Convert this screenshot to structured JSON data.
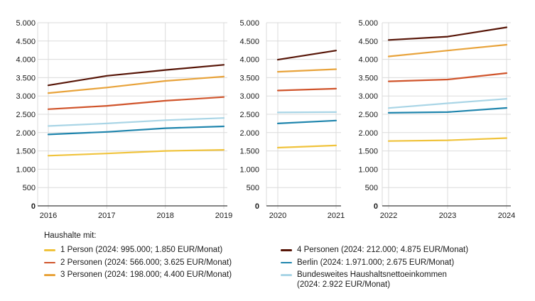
{
  "page": {
    "background": "#ffffff"
  },
  "series_colors": {
    "1-person": "#F0C33C",
    "2-personen": "#D0542B",
    "3-personen": "#E8A33B",
    "4-personen": "#571507",
    "berlin": "#1F85AD",
    "bundesweit": "#A9D5E6"
  },
  "axis": {
    "ymin": 0,
    "ymax": 5000,
    "ystep": 500,
    "tick_labels": [
      "0",
      "500",
      "1.000",
      "1.500",
      "2.000",
      "2.500",
      "3.000",
      "3.500",
      "4.000",
      "4.500",
      "5.000"
    ],
    "grid_color": "#DBDBDB",
    "axis_color": "#3C3C3C",
    "text_color": "#1A1A1A"
  },
  "chart_data": [
    {
      "type": "line",
      "x": [
        "2016",
        "2017",
        "2018",
        "2019"
      ],
      "ylim": [
        0,
        5000
      ],
      "grid": true,
      "series": [
        {
          "key": "1-person",
          "name": "1 Person",
          "values": [
            1370,
            1430,
            1500,
            1530
          ]
        },
        {
          "key": "2-personen",
          "name": "2 Personen",
          "values": [
            2640,
            2730,
            2870,
            2970
          ]
        },
        {
          "key": "3-personen",
          "name": "3 Personen",
          "values": [
            3080,
            3230,
            3410,
            3530
          ]
        },
        {
          "key": "4-personen",
          "name": "4 Personen",
          "values": [
            3290,
            3550,
            3710,
            3850
          ]
        },
        {
          "key": "berlin",
          "name": "Berlin",
          "values": [
            1950,
            2020,
            2120,
            2170
          ]
        },
        {
          "key": "bundesweit",
          "name": "Bundesweites Haushaltsnettoeinkommen",
          "values": [
            2180,
            2250,
            2340,
            2400
          ]
        }
      ]
    },
    {
      "type": "line",
      "x": [
        "2020",
        "2021"
      ],
      "ylim": [
        0,
        5000
      ],
      "grid": true,
      "series": [
        {
          "key": "1-person",
          "name": "1 Person",
          "values": [
            1590,
            1650
          ]
        },
        {
          "key": "2-personen",
          "name": "2 Personen",
          "values": [
            3150,
            3200
          ]
        },
        {
          "key": "3-personen",
          "name": "3 Personen",
          "values": [
            3660,
            3730
          ]
        },
        {
          "key": "4-personen",
          "name": "4 Personen",
          "values": [
            3990,
            4240
          ]
        },
        {
          "key": "berlin",
          "name": "Berlin",
          "values": [
            2250,
            2330
          ]
        },
        {
          "key": "bundesweit",
          "name": "Bundesweites Haushaltsnettoeinkommen",
          "values": [
            2550,
            2560
          ]
        }
      ]
    },
    {
      "type": "line",
      "x": [
        "2022",
        "2023",
        "2024"
      ],
      "ylim": [
        0,
        5000
      ],
      "grid": true,
      "series": [
        {
          "key": "1-person",
          "name": "1 Person",
          "values": [
            1770,
            1790,
            1850
          ]
        },
        {
          "key": "2-personen",
          "name": "2 Personen",
          "values": [
            3400,
            3450,
            3625
          ]
        },
        {
          "key": "3-personen",
          "name": "3 Personen",
          "values": [
            4080,
            4240,
            4400
          ]
        },
        {
          "key": "4-personen",
          "name": "4 Personen",
          "values": [
            4530,
            4620,
            4875
          ]
        },
        {
          "key": "berlin",
          "name": "Berlin",
          "values": [
            2540,
            2560,
            2675
          ]
        },
        {
          "key": "bundesweit",
          "name": "Bundesweites Haushaltsnettoeinkommen",
          "values": [
            2670,
            2800,
            2922
          ]
        }
      ]
    }
  ],
  "legend": {
    "title": "Haushalte mit:",
    "columns": [
      {
        "items": [
          {
            "series": "1-person",
            "lines": [
              "1 Person (2024: 995.000; 1.850 EUR/Monat)"
            ]
          },
          {
            "series": "2-personen",
            "lines": [
              "2 Personen (2024: 566.000; 3.625 EUR/Monat)"
            ]
          },
          {
            "series": "3-personen",
            "lines": [
              "3 Personen (2024: 198.000; 4.400 EUR/Monat)"
            ]
          }
        ]
      },
      {
        "items": [
          {
            "series": "4-personen",
            "lines": [
              "4 Personen (2024: 212.000; 4.875 EUR/Monat)"
            ]
          },
          {
            "series": "berlin",
            "lines": [
              "Berlin (2024: 1.971.000; 2.675 EUR/Monat)"
            ]
          },
          {
            "series": "bundesweit",
            "lines": [
              "Bundesweites Haushaltsnettoeinkommen",
              "(2024: 2.922 EUR/Monat)"
            ]
          }
        ]
      }
    ]
  }
}
